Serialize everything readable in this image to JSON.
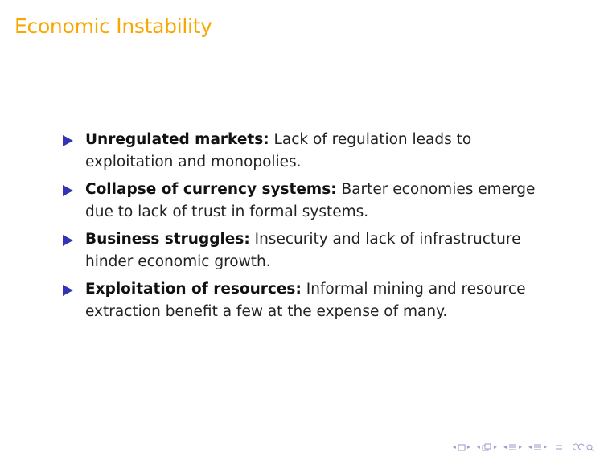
{
  "slide": {
    "title": "Economic Instability",
    "bullets": [
      {
        "term": "Unregulated markets:",
        "text": " Lack of regulation leads to exploitation and monopolies."
      },
      {
        "term": "Collapse of currency systems:",
        "text": " Barter economies emerge due to lack of trust in formal systems."
      },
      {
        "term": "Business struggles:",
        "text": " Insecurity and lack of infrastructure hinder economic growth."
      },
      {
        "term": "Exploitation of resources:",
        "text": " Informal mining and resource extraction benefit a few at the expense of many."
      }
    ]
  },
  "colors": {
    "title": "#f7a700",
    "bullet_marker": "#3333b3",
    "nav": "#9a9ac8"
  },
  "navigation": {
    "icons": [
      "nav-first-frame-icon",
      "nav-frame-icon",
      "nav-subsection-icon",
      "nav-section-icon",
      "nav-toc-icon",
      "nav-search-icon"
    ]
  }
}
